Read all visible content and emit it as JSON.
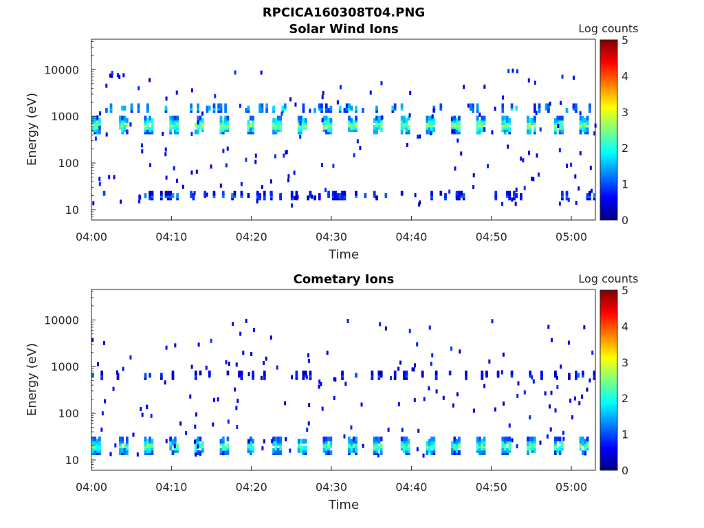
{
  "figure_title": "RPCICA160308T04.PNG",
  "chart_data": [
    {
      "type": "heatmap",
      "title": "Solar Wind Ions",
      "xlabel": "Time",
      "ylabel": "Energy (eV)",
      "yscale": "log",
      "ylim": [
        6,
        45000
      ],
      "xlim_minutes": [
        0,
        63
      ],
      "xticks": [
        "04:00",
        "04:10",
        "04:20",
        "04:30",
        "04:40",
        "04:50",
        "05:00"
      ],
      "xtick_minutes": [
        0,
        10,
        20,
        30,
        40,
        50,
        60
      ],
      "yticks": [
        "10",
        "100",
        "1000",
        "10000"
      ],
      "ytick_values": [
        10,
        100,
        1000,
        10000
      ],
      "colorbar": {
        "label": "Log counts",
        "range": [
          0,
          5
        ],
        "ticks": [
          "0",
          "1",
          "2",
          "3",
          "4",
          "5"
        ],
        "colormap": "jet"
      },
      "dominant_bands": [
        {
          "energy_eV": 650,
          "level": 2.5,
          "description": "repeating bursts every ~3 min"
        },
        {
          "energy_eV": 1500,
          "level": 1.5
        },
        {
          "energy_eV": 20,
          "level": 1.0
        }
      ]
    },
    {
      "type": "heatmap",
      "title": "Cometary Ions",
      "xlabel": "Time",
      "ylabel": "Energy (eV)",
      "yscale": "log",
      "ylim": [
        6,
        45000
      ],
      "xlim_minutes": [
        0,
        63
      ],
      "xticks": [
        "04:00",
        "04:10",
        "04:20",
        "04:30",
        "04:40",
        "04:50",
        "05:00"
      ],
      "xtick_minutes": [
        0,
        10,
        20,
        30,
        40,
        50,
        60
      ],
      "yticks": [
        "10",
        "100",
        "1000",
        "10000"
      ],
      "ytick_values": [
        10,
        100,
        1000,
        10000
      ],
      "colorbar": {
        "label": "Log counts",
        "range": [
          0,
          5
        ],
        "ticks": [
          "0",
          "1",
          "2",
          "3",
          "4",
          "5"
        ],
        "colormap": "jet"
      },
      "dominant_bands": [
        {
          "energy_eV": 20,
          "level": 2.3,
          "description": "repeating bursts every ~3 min"
        },
        {
          "energy_eV": 650,
          "level": 0.8
        }
      ]
    }
  ]
}
